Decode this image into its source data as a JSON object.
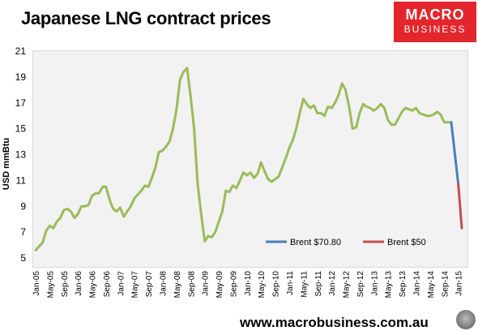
{
  "header": {
    "title": "Japanese LNG contract prices"
  },
  "logo": {
    "line1": "MACRO",
    "line2": "BUSINESS"
  },
  "footer": {
    "url": "www.macrobusiness.com.au"
  },
  "chart_data": {
    "type": "line",
    "title": "Japanese LNG contract prices",
    "ylabel": "USD mmBtu",
    "xlabel": "",
    "ylim": [
      5,
      21
    ],
    "yticks": [
      5,
      7,
      9,
      11,
      13,
      15,
      17,
      19,
      21
    ],
    "grid": false,
    "legend_position": "bottom-right",
    "x_tick_labels": [
      "Jan-05",
      "May-05",
      "Sep-05",
      "Jan-06",
      "May-06",
      "Sep-06",
      "Jan-07",
      "May-07",
      "Sep-07",
      "Jan-08",
      "May-08",
      "Sep-08",
      "Jan-09",
      "May-09",
      "Sep-09",
      "Jan-10",
      "May-10",
      "Sep-10",
      "Jan-11",
      "May-11",
      "Sep-11",
      "Jan-12",
      "May-12",
      "Sep-12",
      "Jan-13",
      "May-13",
      "Sep-13",
      "Jan-14",
      "May-14",
      "Sep-14",
      "Jan-15"
    ],
    "series": [
      {
        "name": "",
        "color": "#9bbb59",
        "x_start": "Jan-05",
        "values": [
          5.6,
          5.9,
          6.2,
          7.1,
          7.5,
          7.3,
          7.8,
          8.1,
          8.7,
          8.8,
          8.6,
          8.1,
          8.4,
          9.0,
          9.0,
          9.1,
          9.8,
          10.0,
          10.0,
          10.5,
          10.5,
          9.5,
          8.8,
          8.6,
          8.9,
          8.2,
          8.6,
          9.0,
          9.6,
          9.9,
          10.2,
          10.6,
          10.5,
          11.2,
          12.0,
          13.2,
          13.3,
          13.6,
          14.0,
          15.0,
          16.5,
          18.8,
          19.4,
          19.7,
          17.5,
          15.0,
          10.7,
          8.4,
          6.3,
          6.7,
          6.6,
          7.0,
          7.8,
          8.6,
          10.2,
          10.1,
          10.6,
          10.4,
          11.0,
          11.6,
          11.4,
          11.6,
          11.2,
          11.5,
          12.4,
          11.7,
          11.1,
          10.9,
          11.1,
          11.3,
          12.0,
          12.7,
          13.5,
          14.1,
          15.0,
          16.2,
          17.3,
          16.9,
          16.6,
          16.8,
          16.2,
          16.2,
          16.0,
          16.7,
          16.6,
          17.0,
          17.6,
          18.5,
          18.0,
          16.7,
          15.0,
          15.1,
          16.2,
          16.9,
          16.7,
          16.6,
          16.4,
          16.6,
          16.9,
          16.6,
          15.7,
          15.3,
          15.3,
          15.8,
          16.3,
          16.6,
          16.5,
          16.4,
          16.6,
          16.2,
          16.1,
          16.0,
          16.0,
          16.1,
          16.3,
          16.1,
          15.5,
          15.5,
          15.5
        ]
      },
      {
        "name": "Brent $70.80",
        "color": "#4a7ebb",
        "x": [
          "Nov-14",
          "Jan-15"
        ],
        "values": [
          15.5,
          10.7
        ]
      },
      {
        "name": "Brent $50",
        "color": "#c0504d",
        "x": [
          "Jan-15",
          "Feb-15"
        ],
        "values": [
          10.7,
          7.3
        ]
      }
    ]
  }
}
